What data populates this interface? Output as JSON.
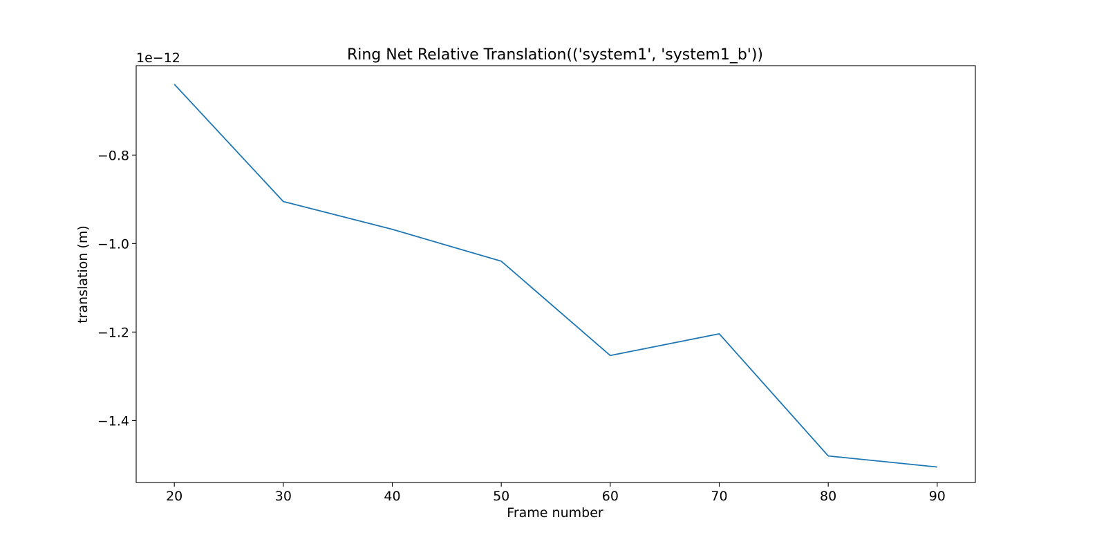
{
  "chart_data": {
    "type": "line",
    "title": "Ring Net Relative Translation(('system1', 'system1_b'))",
    "xlabel": "Frame number",
    "ylabel": "translation (m)",
    "y_offset_text": "1e−12",
    "x": [
      20,
      30,
      40,
      50,
      60,
      70,
      80,
      90
    ],
    "series": [
      {
        "values": [
          -0.64,
          -0.905,
          -0.968,
          -1.04,
          -1.253,
          -1.204,
          -1.48,
          -1.505
        ]
      }
    ],
    "xlim": [
      16.5,
      93.5
    ],
    "ylim": [
      -1.54,
      -0.598
    ],
    "xticks": [
      20,
      30,
      40,
      50,
      60,
      70,
      80,
      90
    ],
    "xtick_labels": [
      "20",
      "30",
      "40",
      "50",
      "60",
      "70",
      "80",
      "90"
    ],
    "yticks": [
      -0.8,
      -1.0,
      -1.2,
      -1.4
    ],
    "ytick_labels": [
      "−0.8",
      "−1.0",
      "−1.2",
      "−1.4"
    ],
    "grid": false,
    "line_color": "#1f77b4"
  }
}
